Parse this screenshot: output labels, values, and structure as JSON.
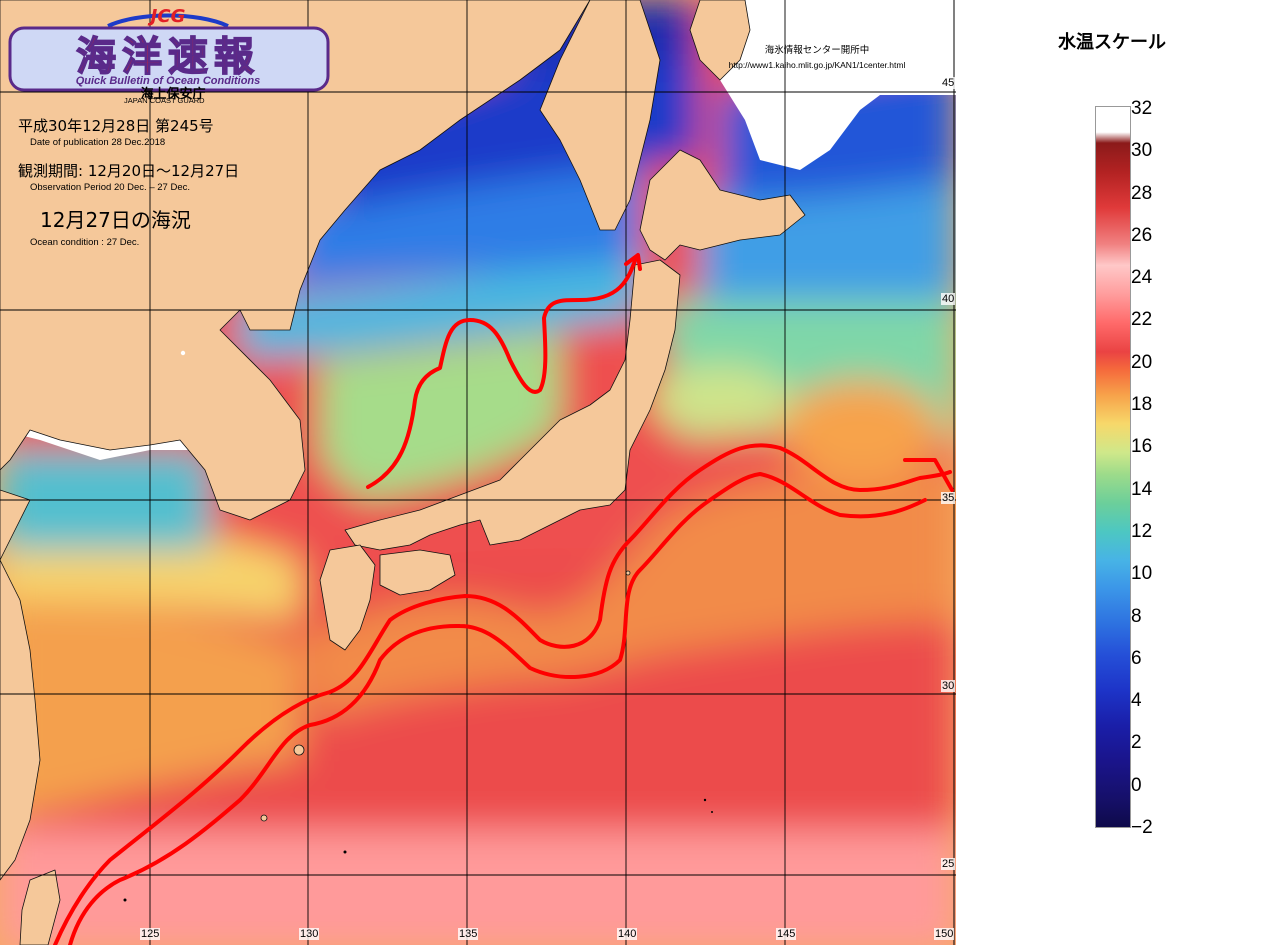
{
  "header": {
    "logo_top": "JCG",
    "logo_main": "海洋速報",
    "logo_en": "Quick Bulletin of Ocean Conditions",
    "logo_jp_org": "海上保安庁",
    "logo_en_org": "JAPAN COAST GUARD",
    "publication_jp": "平成30年12月28日 第245号",
    "publication_en": "Date of publication   28 Dec.2018",
    "observation_jp": "観測期間: 12月20日～12月27日",
    "observation_en": "Observation Period     20 Dec. – 27 Dec.",
    "condition_jp": "12月27日の海況",
    "condition_en": "Ocean condition :   27 Dec."
  },
  "notice": {
    "line1": "海氷情報センター開所中",
    "line2": "http://www1.kaiho.mlit.go.jp/KAN1/1center.html"
  },
  "grid": {
    "longitude_labels": [
      "125",
      "130",
      "135",
      "140",
      "145",
      "150"
    ],
    "latitude_labels": [
      "45",
      "40",
      "35",
      "30",
      "25"
    ]
  },
  "scale": {
    "title": "水温スケール",
    "labels": [
      "32",
      "30",
      "28",
      "26",
      "24",
      "22",
      "20",
      "18",
      "16",
      "14",
      "12",
      "10",
      "8",
      "6",
      "4",
      "2",
      "0",
      "−2"
    ],
    "min": -2,
    "max": 32,
    "unit": "°C"
  },
  "colors": {
    "land": "#f5c89a",
    "no_data": "#ffffff",
    "current_arrow": "#ff0000"
  },
  "currents": [
    {
      "name": "Tsushima Warm Current"
    },
    {
      "name": "Kuroshio"
    }
  ]
}
